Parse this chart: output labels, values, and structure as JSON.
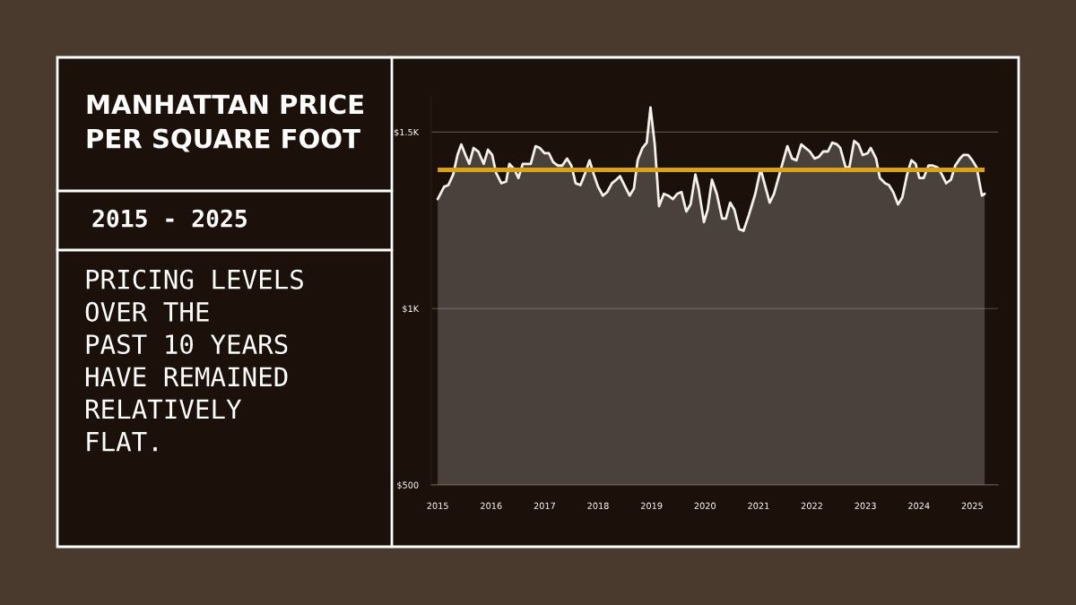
{
  "chart_data": {
    "type": "area",
    "title": "MANHATTAN PRICE\nPER SQUARE FOOT",
    "subtitle": "2015 - 2025",
    "annotations": [
      "PRICING LEVELS\nOVER THE\nPAST 10 YEARS\nHAVE REMAINED\nRELATIVELY\nFLAT."
    ],
    "series": [
      {
        "color": "#f4f1ec",
        "x": [
          2015.0,
          2015.12,
          2015.2,
          2015.29,
          2015.37,
          2015.44,
          2015.52,
          2015.59,
          2015.67,
          2015.76,
          2015.86,
          2015.94,
          2016.02,
          2016.09,
          2016.19,
          2016.28,
          2016.34,
          2016.43,
          2016.51,
          2016.59,
          2016.74,
          2016.83,
          2016.91,
          2017.0,
          2017.08,
          2017.16,
          2017.25,
          2017.33,
          2017.42,
          2017.5,
          2017.58,
          2017.67,
          2017.75,
          2017.84,
          2017.92,
          2018.0,
          2018.09,
          2018.17,
          2018.26,
          2018.34,
          2018.41,
          2018.49,
          2018.59,
          2018.67,
          2018.74,
          2018.83,
          2018.91,
          2018.98,
          2019.06,
          2019.14,
          2019.23,
          2019.31,
          2019.4,
          2019.48,
          2019.56,
          2019.65,
          2019.73,
          2019.82,
          2019.88,
          2019.98,
          2020.05,
          2020.13,
          2020.22,
          2020.32,
          2020.39,
          2020.47,
          2020.55,
          2020.64,
          2020.72,
          2020.82,
          2020.94,
          2021.04,
          2021.12,
          2021.21,
          2021.29,
          2021.41,
          2021.54,
          2021.63,
          2021.71,
          2021.8,
          2021.88,
          2021.96,
          2022.05,
          2022.13,
          2022.21,
          2022.3,
          2022.38,
          2022.47,
          2022.53,
          2022.63,
          2022.7,
          2022.79,
          2022.87,
          2022.95,
          2023.04,
          2023.1,
          2023.2,
          2023.27,
          2023.37,
          2023.44,
          2023.52,
          2023.61,
          2023.69,
          2023.78,
          2023.86,
          2023.94,
          2024.01,
          2024.09,
          2024.18,
          2024.26,
          2024.35,
          2024.43,
          2024.51,
          2024.6,
          2024.68,
          2024.77,
          2024.83,
          2024.92,
          2025.0,
          2025.08,
          2025.18,
          2025.23
        ],
        "values": [
          1310,
          1345,
          1350,
          1380,
          1435,
          1465,
          1435,
          1410,
          1455,
          1445,
          1410,
          1450,
          1435,
          1385,
          1355,
          1360,
          1410,
          1395,
          1370,
          1410,
          1410,
          1460,
          1455,
          1440,
          1440,
          1415,
          1405,
          1405,
          1425,
          1405,
          1355,
          1350,
          1380,
          1420,
          1380,
          1345,
          1320,
          1330,
          1355,
          1365,
          1375,
          1350,
          1320,
          1340,
          1420,
          1455,
          1470,
          1570,
          1465,
          1290,
          1325,
          1320,
          1310,
          1325,
          1330,
          1275,
          1295,
          1380,
          1340,
          1245,
          1280,
          1365,
          1325,
          1255,
          1255,
          1300,
          1280,
          1225,
          1220,
          1265,
          1325,
          1395,
          1350,
          1300,
          1325,
          1390,
          1460,
          1425,
          1420,
          1465,
          1455,
          1445,
          1425,
          1430,
          1445,
          1445,
          1470,
          1465,
          1455,
          1400,
          1400,
          1475,
          1465,
          1435,
          1440,
          1455,
          1425,
          1370,
          1355,
          1350,
          1330,
          1295,
          1315,
          1380,
          1420,
          1410,
          1370,
          1370,
          1405,
          1405,
          1400,
          1380,
          1355,
          1365,
          1405,
          1425,
          1435,
          1435,
          1420,
          1400,
          1320,
          1325
        ]
      }
    ],
    "xlim": [
      2014.88,
      2025.48
    ],
    "xticks": [
      2015,
      2016,
      2017,
      2018,
      2019,
      2020,
      2021,
      2022,
      2023,
      2024,
      2025
    ],
    "ylim": [
      500,
      1600
    ],
    "yticks": [
      {
        "value": 500,
        "label": "$500"
      },
      {
        "value": 1000,
        "label": "$1K"
      },
      {
        "value": 1500,
        "label": "$1.5K"
      }
    ],
    "grid": "y",
    "ref_lines": [
      {
        "axis": "y",
        "value": 1393,
        "label": null,
        "color": "#d9a21b"
      }
    ]
  }
}
